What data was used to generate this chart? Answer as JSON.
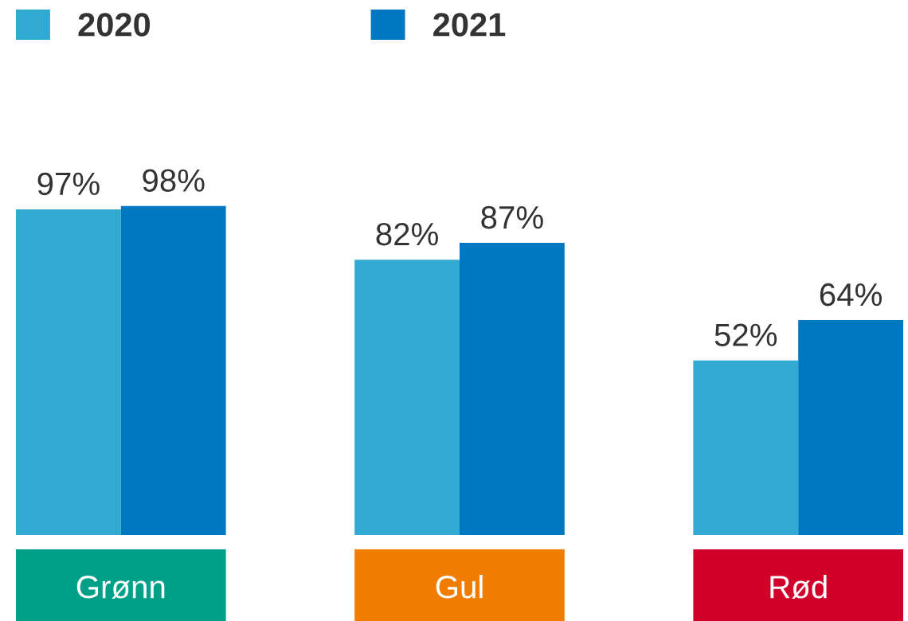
{
  "chart_data": {
    "type": "bar",
    "categories": [
      "Grønn",
      "Gul",
      "Rød"
    ],
    "series": [
      {
        "name": "2020",
        "color": "#31aad1",
        "values": [
          97,
          82,
          52
        ],
        "value_labels": [
          "97%",
          "82%",
          "52%"
        ]
      },
      {
        "name": "2021",
        "color": "#0078c1",
        "values": [
          98,
          87,
          64
        ],
        "value_labels": [
          "98%",
          "87%",
          "64%"
        ]
      }
    ],
    "legend": "top left",
    "tick_labels": "x"
  }
}
